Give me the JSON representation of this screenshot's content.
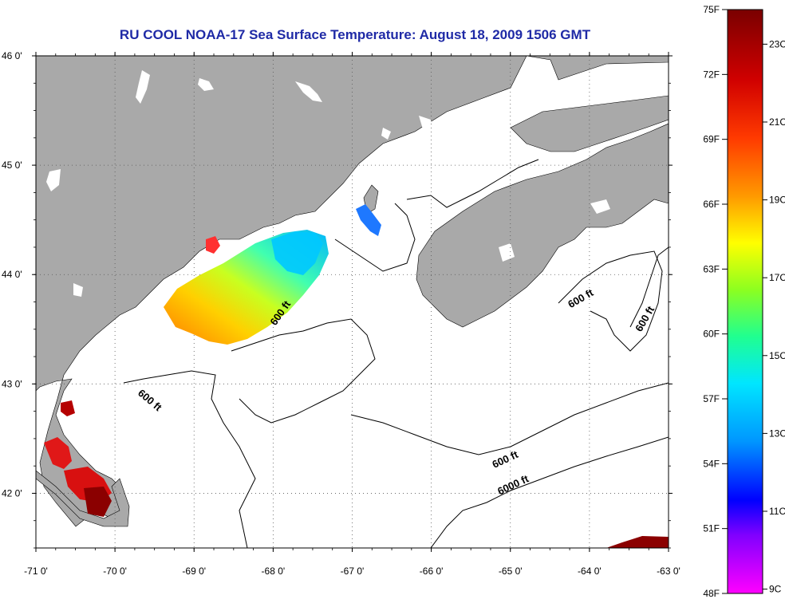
{
  "title": "RU COOL  NOAA-17  Sea Surface Temperature:  August 18, 2009 1506 GMT",
  "map": {
    "lon_range": [
      -71,
      -63
    ],
    "lat_range": [
      41.5,
      46
    ],
    "lon_ticks": [
      "-71 0'",
      "-70 0'",
      "-69 0'",
      "-68 0'",
      "-67 0'",
      "-66 0'",
      "-65 0'",
      "-64 0'",
      "-63 0'"
    ],
    "lat_ticks": [
      "46 0'",
      "45 0'",
      "44 0'",
      "43 0'",
      "42 0'"
    ],
    "grid": "dotted",
    "land_color": "#a9a9a9",
    "water_color": "#ffffff"
  },
  "contours": [
    {
      "label": "600 ft"
    },
    {
      "label": "600 ft"
    },
    {
      "label": "600 ft"
    },
    {
      "label": "600 ft"
    },
    {
      "label": "600 ft"
    },
    {
      "label": "6000 ft"
    }
  ],
  "colorbar": {
    "fahrenheit": [
      "75F",
      "72F",
      "69F",
      "66F",
      "63F",
      "60F",
      "57F",
      "54F",
      "51F",
      "48F"
    ],
    "celsius": [
      "23C",
      "21C",
      "19C",
      "17C",
      "15C",
      "13C",
      "11C",
      "9C"
    ],
    "colors": [
      "#8b0000",
      "#ff1a1a",
      "#ff8c00",
      "#ffff00",
      "#40ff80",
      "#00e5ff",
      "#1e64ff",
      "#0000ff",
      "#ff00ff"
    ]
  }
}
